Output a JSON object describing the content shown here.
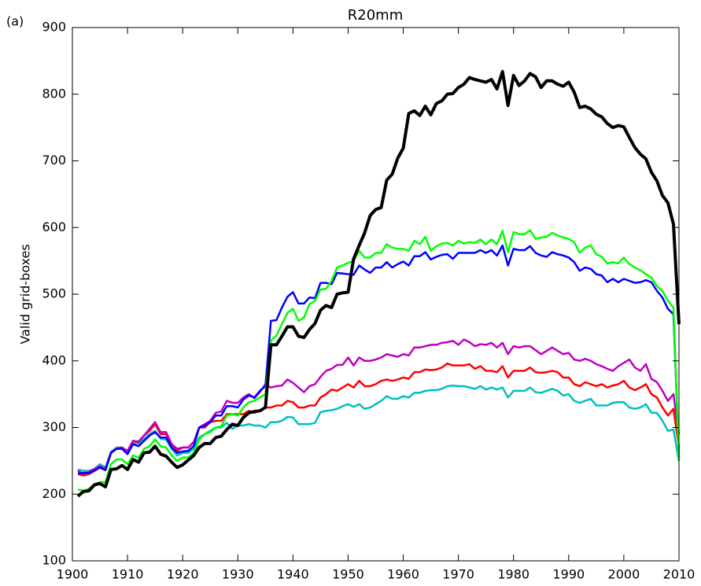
{
  "chart_data": {
    "type": "line",
    "title": "R20mm",
    "panel_label": "(a)",
    "y_label": "Valid grid-boxes",
    "x": [
      1901,
      1902,
      1903,
      1904,
      1905,
      1906,
      1907,
      1908,
      1909,
      1910,
      1911,
      1912,
      1913,
      1914,
      1915,
      1916,
      1917,
      1918,
      1919,
      1920,
      1921,
      1922,
      1923,
      1924,
      1925,
      1926,
      1927,
      1928,
      1929,
      1930,
      1931,
      1932,
      1933,
      1934,
      1935,
      1936,
      1937,
      1938,
      1939,
      1940,
      1941,
      1942,
      1943,
      1944,
      1945,
      1946,
      1947,
      1948,
      1949,
      1950,
      1951,
      1952,
      1953,
      1954,
      1955,
      1956,
      1957,
      1958,
      1959,
      1960,
      1961,
      1962,
      1963,
      1964,
      1965,
      1966,
      1967,
      1968,
      1969,
      1970,
      1971,
      1972,
      1973,
      1974,
      1975,
      1976,
      1977,
      1978,
      1979,
      1980,
      1981,
      1982,
      1983,
      1984,
      1985,
      1986,
      1987,
      1988,
      1989,
      1990,
      1991,
      1992,
      1993,
      1994,
      1995,
      1996,
      1997,
      1998,
      1999,
      2000,
      2001,
      2002,
      2003,
      2004,
      2005,
      2006,
      2007,
      2008,
      2009,
      2010
    ],
    "series": [
      {
        "color": "#00bfbf",
        "linewidth": 2.5,
        "values": [
          237,
          235,
          235,
          238,
          245,
          240,
          263,
          270,
          270,
          262,
          278,
          276,
          283,
          290,
          295,
          283,
          282,
          268,
          258,
          262,
          262,
          268,
          285,
          290,
          295,
          300,
          300,
          307,
          298,
          303,
          303,
          305,
          303,
          303,
          300,
          308,
          308,
          310,
          316,
          315,
          305,
          305,
          305,
          307,
          323,
          325,
          326,
          328,
          332,
          335,
          331,
          335,
          328,
          330,
          335,
          340,
          347,
          343,
          343,
          347,
          345,
          352,
          352,
          355,
          356,
          356,
          358,
          362,
          363,
          362,
          362,
          360,
          358,
          362,
          357,
          360,
          357,
          360,
          345,
          355,
          355,
          355,
          360,
          353,
          352,
          355,
          358,
          355,
          348,
          350,
          340,
          337,
          340,
          343,
          333,
          333,
          333,
          337,
          338,
          338,
          330,
          328,
          330,
          335,
          322,
          322,
          310,
          295,
          297,
          250
        ]
      },
      {
        "color": "#ff0000",
        "linewidth": 2.5,
        "values": [
          230,
          228,
          230,
          235,
          240,
          236,
          262,
          268,
          270,
          262,
          280,
          278,
          288,
          295,
          305,
          290,
          290,
          275,
          265,
          270,
          270,
          278,
          300,
          300,
          308,
          310,
          310,
          320,
          320,
          320,
          320,
          325,
          322,
          325,
          330,
          330,
          333,
          333,
          340,
          338,
          330,
          330,
          333,
          333,
          345,
          350,
          357,
          355,
          360,
          365,
          360,
          370,
          362,
          362,
          365,
          370,
          372,
          370,
          372,
          375,
          373,
          383,
          383,
          387,
          386,
          387,
          390,
          396,
          393,
          393,
          393,
          395,
          388,
          392,
          385,
          385,
          383,
          392,
          375,
          385,
          385,
          385,
          390,
          383,
          382,
          383,
          385,
          383,
          375,
          375,
          365,
          362,
          368,
          365,
          362,
          365,
          360,
          363,
          365,
          370,
          360,
          356,
          360,
          365,
          350,
          345,
          330,
          318,
          328,
          270
        ]
      },
      {
        "color": "#bf00bf",
        "linewidth": 2.5,
        "values": [
          235,
          230,
          233,
          238,
          242,
          238,
          263,
          268,
          270,
          265,
          280,
          279,
          288,
          298,
          308,
          293,
          293,
          275,
          268,
          270,
          270,
          278,
          300,
          305,
          310,
          322,
          324,
          340,
          337,
          337,
          345,
          350,
          344,
          353,
          365,
          360,
          362,
          363,
          372,
          367,
          360,
          353,
          362,
          365,
          376,
          385,
          388,
          394,
          394,
          405,
          393,
          405,
          400,
          400,
          402,
          405,
          410,
          408,
          406,
          410,
          408,
          420,
          420,
          422,
          424,
          424,
          427,
          428,
          430,
          424,
          432,
          428,
          422,
          425,
          424,
          427,
          420,
          427,
          410,
          422,
          420,
          422,
          422,
          416,
          410,
          415,
          420,
          415,
          410,
          412,
          402,
          400,
          403,
          400,
          395,
          392,
          388,
          385,
          392,
          397,
          402,
          390,
          385,
          395,
          373,
          368,
          355,
          340,
          350,
          290
        ]
      },
      {
        "color": "#0000ff",
        "linewidth": 2.5,
        "values": [
          231,
          232,
          232,
          235,
          240,
          236,
          262,
          268,
          268,
          260,
          275,
          272,
          280,
          288,
          293,
          285,
          285,
          270,
          262,
          264,
          265,
          272,
          300,
          303,
          308,
          318,
          318,
          332,
          332,
          330,
          342,
          348,
          345,
          355,
          362,
          460,
          461,
          480,
          496,
          503,
          486,
          486,
          495,
          494,
          517,
          517,
          515,
          532,
          531,
          530,
          529,
          543,
          537,
          532,
          540,
          540,
          548,
          540,
          545,
          549,
          543,
          557,
          557,
          563,
          552,
          556,
          559,
          560,
          553,
          562,
          562,
          562,
          562,
          566,
          562,
          566,
          558,
          573,
          543,
          568,
          566,
          566,
          572,
          562,
          558,
          556,
          563,
          560,
          558,
          555,
          548,
          535,
          540,
          538,
          530,
          528,
          518,
          523,
          518,
          523,
          520,
          517,
          518,
          521,
          518,
          505,
          495,
          478,
          470,
          255
        ]
      },
      {
        "color": "#00ff00",
        "linewidth": 2.5,
        "values": [
          207,
          205,
          208,
          215,
          218,
          218,
          245,
          252,
          252,
          245,
          258,
          255,
          268,
          272,
          282,
          272,
          270,
          258,
          250,
          255,
          255,
          262,
          282,
          290,
          293,
          300,
          302,
          318,
          320,
          318,
          330,
          338,
          340,
          345,
          350,
          430,
          438,
          455,
          472,
          478,
          460,
          465,
          485,
          490,
          507,
          508,
          520,
          540,
          543,
          547,
          550,
          565,
          555,
          555,
          562,
          562,
          575,
          570,
          568,
          568,
          565,
          580,
          575,
          586,
          565,
          572,
          576,
          577,
          573,
          580,
          576,
          578,
          577,
          582,
          575,
          582,
          575,
          595,
          563,
          593,
          590,
          590,
          596,
          583,
          585,
          586,
          592,
          588,
          585,
          583,
          578,
          562,
          570,
          573,
          560,
          556,
          546,
          548,
          546,
          555,
          545,
          540,
          536,
          530,
          525,
          512,
          505,
          490,
          480,
          250
        ]
      },
      {
        "color": "#000000",
        "linewidth": 4,
        "values": [
          197,
          204,
          205,
          214,
          216,
          211,
          237,
          238,
          243,
          237,
          252,
          248,
          262,
          263,
          272,
          260,
          257,
          248,
          240,
          244,
          251,
          258,
          270,
          276,
          276,
          285,
          287,
          297,
          305,
          303,
          315,
          322,
          324,
          325,
          330,
          424,
          424,
          437,
          451,
          451,
          437,
          435,
          447,
          456,
          476,
          483,
          480,
          500,
          502,
          503,
          553,
          573,
          592,
          618,
          627,
          630,
          671,
          680,
          704,
          719,
          771,
          775,
          768,
          782,
          769,
          786,
          790,
          800,
          801,
          810,
          815,
          825,
          822,
          820,
          818,
          822,
          808,
          834,
          783,
          828,
          813,
          820,
          831,
          826,
          810,
          820,
          820,
          815,
          812,
          818,
          803,
          780,
          782,
          778,
          770,
          766,
          756,
          750,
          753,
          751,
          735,
          720,
          710,
          703,
          683,
          670,
          648,
          637,
          605,
          455
        ]
      }
    ],
    "xlim": [
      1900,
      2010
    ],
    "xticks": [
      1900,
      1910,
      1920,
      1930,
      1940,
      1950,
      1960,
      1970,
      1980,
      1990,
      2000,
      2010
    ],
    "ylim": [
      100,
      900
    ],
    "yticks": [
      100,
      200,
      300,
      400,
      500,
      600,
      700,
      800,
      900
    ],
    "grid": false
  }
}
